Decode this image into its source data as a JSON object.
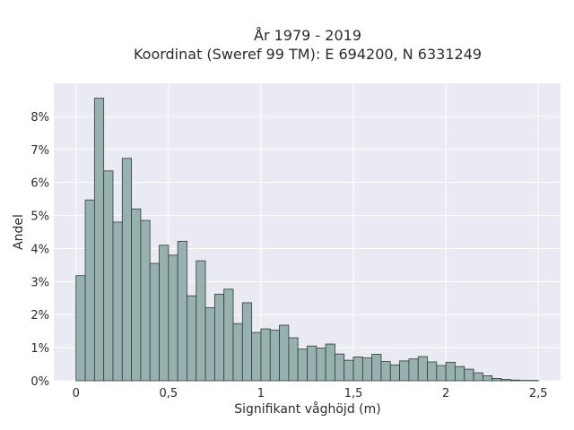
{
  "chart_data": {
    "type": "bar",
    "title_lines": [
      "År 1979 - 2019",
      "Koordinat (Sweref 99 TM): E 694200, N 6331249"
    ],
    "xlabel": "Signifikant våghöjd (m)",
    "ylabel": "Andel",
    "x_ticks": [
      {
        "value": 0,
        "label": "0"
      },
      {
        "value": 0.5,
        "label": "0,5"
      },
      {
        "value": 1,
        "label": "1"
      },
      {
        "value": 1.5,
        "label": "1,5"
      },
      {
        "value": 2,
        "label": "2"
      },
      {
        "value": 2.5,
        "label": "2,5"
      }
    ],
    "y_ticks": [
      {
        "value": 0,
        "label": "0%"
      },
      {
        "value": 1,
        "label": "1%"
      },
      {
        "value": 2,
        "label": "2%"
      },
      {
        "value": 3,
        "label": "3%"
      },
      {
        "value": 4,
        "label": "4%"
      },
      {
        "value": 5,
        "label": "5%"
      },
      {
        "value": 6,
        "label": "6%"
      },
      {
        "value": 7,
        "label": "7%"
      },
      {
        "value": 8,
        "label": "8%"
      }
    ],
    "xlim": [
      -0.12,
      2.62
    ],
    "ylim": [
      0,
      9.0
    ],
    "bin_start": 0,
    "bin_width": 0.05,
    "values": [
      3.18,
      5.47,
      8.55,
      6.35,
      4.8,
      6.73,
      5.2,
      4.85,
      3.55,
      4.1,
      3.8,
      4.22,
      2.57,
      3.63,
      2.21,
      2.62,
      2.77,
      1.73,
      2.36,
      1.46,
      1.57,
      1.53,
      1.68,
      1.3,
      0.96,
      1.05,
      0.99,
      1.11,
      0.81,
      0.62,
      0.72,
      0.69,
      0.8,
      0.58,
      0.48,
      0.6,
      0.66,
      0.73,
      0.57,
      0.46,
      0.56,
      0.43,
      0.35,
      0.24,
      0.15,
      0.07,
      0.04,
      0.02,
      0.01,
      0.01
    ],
    "grid": true,
    "colors": {
      "plot_background": "#eaeaf2",
      "bar_fill": "#97b0b0",
      "bar_edge": "#2f3b3b",
      "grid": "#ffffff"
    }
  }
}
